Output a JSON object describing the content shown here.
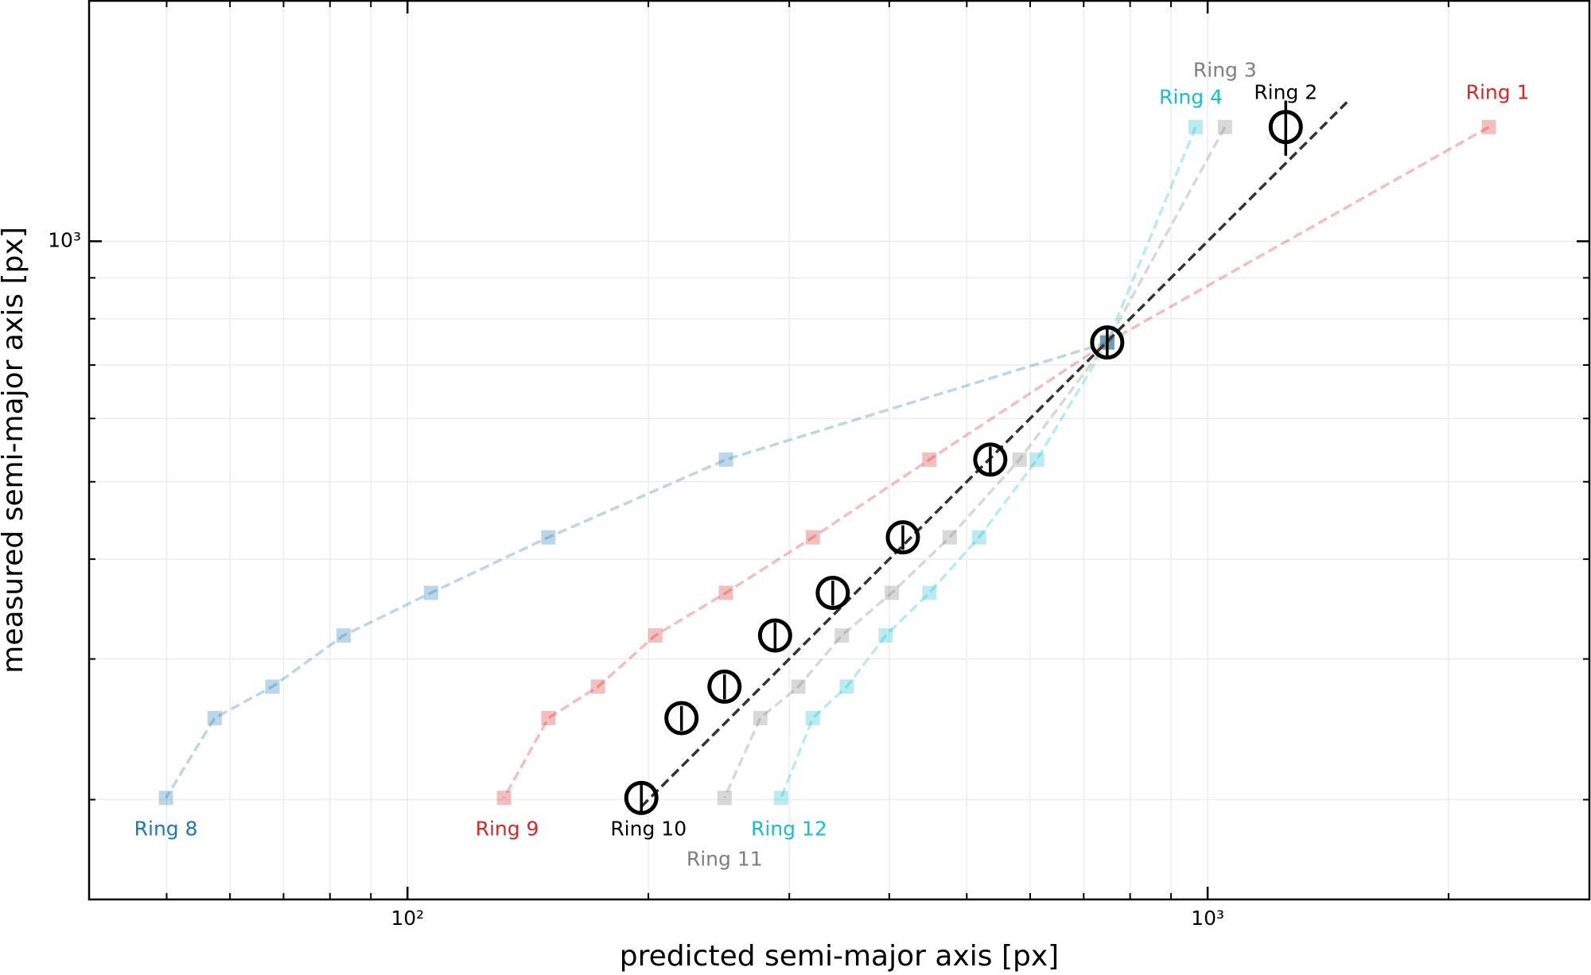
{
  "chart_data": {
    "type": "scatter",
    "xlabel": "predicted semi-major axis [px]",
    "ylabel": "measured semi-major axis [px]",
    "xscale": "log",
    "yscale": "log",
    "xlim": [
      40,
      3000
    ],
    "ylim": [
      150,
      2000
    ],
    "xticks": [
      {
        "value": 100,
        "label": "10²"
      },
      {
        "value": 1000,
        "label": "10³"
      }
    ],
    "yticks": [
      {
        "value": 1000,
        "label": "10³"
      }
    ],
    "x_minor_ticks": [
      50,
      60,
      70,
      80,
      90,
      200,
      300,
      400,
      500,
      600,
      700,
      800,
      900,
      2000,
      3000
    ],
    "y_minor_ticks": [
      200,
      300,
      400,
      500,
      600,
      700,
      800,
      900
    ],
    "grid": true,
    "series": [
      {
        "color": "#d62728",
        "marker": "square",
        "line": "dashed",
        "alpha": 0.3,
        "x": [
          2246,
          749,
          449,
          321,
          250,
          204,
          173,
          150,
          132
        ],
        "values": [
          1390,
          747,
          533,
          426,
          363,
          321,
          277,
          253,
          201
        ],
        "end_labels": {
          "first": "Ring 1",
          "last": "Ring 9"
        }
      },
      {
        "color": "#7f7f7f",
        "marker": "square",
        "line": "dashed",
        "alpha": 0.3,
        "x": [
          1051,
          749,
          582,
          476,
          403,
          349,
          308,
          276,
          249
        ],
        "values": [
          1390,
          747,
          533,
          426,
          363,
          321,
          277,
          253,
          201
        ],
        "end_labels": {
          "first": "Ring 3",
          "last": "Ring 11"
        }
      },
      {
        "color": "#17becf",
        "marker": "square",
        "line": "dashed",
        "alpha": 0.3,
        "x": [
          966,
          749,
          612,
          518,
          449,
          396,
          354,
          321,
          293
        ],
        "values": [
          1390,
          747,
          533,
          426,
          363,
          321,
          277,
          253,
          201
        ],
        "end_labels": {
          "first": "Ring 4",
          "last": "Ring 12"
        }
      },
      {
        "color": "#1f77b4",
        "marker": "square",
        "line": "dashed",
        "alpha": 0.3,
        "x": [
          749,
          250,
          150,
          107,
          83.2,
          67.8,
          57.4,
          49.9
        ],
        "values": [
          747,
          533,
          426,
          363,
          321,
          277,
          253,
          201
        ],
        "end_labels": {
          "last": "Ring 8"
        }
      },
      {
        "color": "#333333",
        "marker": "none",
        "line": "dashed",
        "alpha": 1,
        "x": [
          196,
          1493
        ],
        "values": [
          196,
          1493
        ]
      },
      {
        "color": "#000000",
        "marker": "circle",
        "line": "none",
        "alpha": 1,
        "x": [
          1252,
          749,
          535,
          416,
          340,
          288,
          249,
          220,
          196
        ],
        "values": [
          1390,
          747,
          533,
          426,
          363,
          321,
          277,
          253,
          201
        ],
        "errors": [
          110,
          30,
          20,
          15,
          13,
          12,
          10,
          9,
          8
        ],
        "end_labels": {
          "first": "Ring 2",
          "last": "Ring 10"
        }
      }
    ]
  }
}
